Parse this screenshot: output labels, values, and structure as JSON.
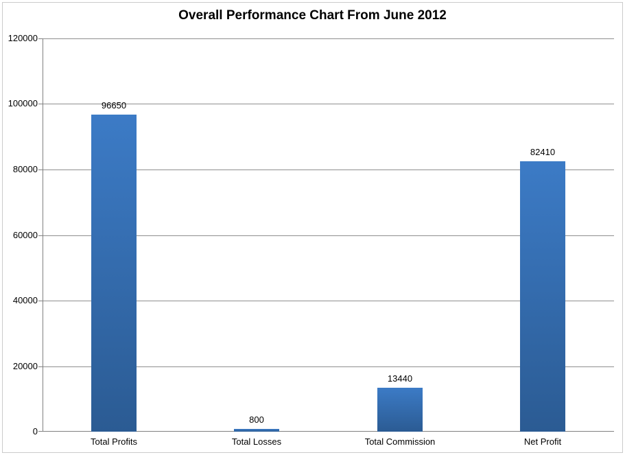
{
  "chart_data": {
    "type": "bar",
    "title": "Overall Performance Chart From June 2012",
    "categories": [
      "Total Profits",
      "Total Losses",
      "Total Commission",
      "Net Profit"
    ],
    "values": [
      96650,
      800,
      13440,
      82410
    ],
    "data_labels": [
      "96650",
      "800",
      "13440",
      "82410"
    ],
    "xlabel": "",
    "ylabel": "",
    "ylim": [
      0,
      120000
    ],
    "ytick_step": 20000,
    "ytick_labels": [
      "0",
      "20000",
      "40000",
      "60000",
      "80000",
      "100000",
      "120000"
    ],
    "grid": true,
    "legend_position": "none",
    "colors": {
      "bar_gradient_top": "#3C7BC6",
      "bar_gradient_bottom": "#2B5B93",
      "gridline": "#8e8e8e",
      "axis": "#7f7f7f",
      "text": "#000000",
      "background": "#FFFFFF",
      "frame_border": "#CACACA"
    }
  }
}
